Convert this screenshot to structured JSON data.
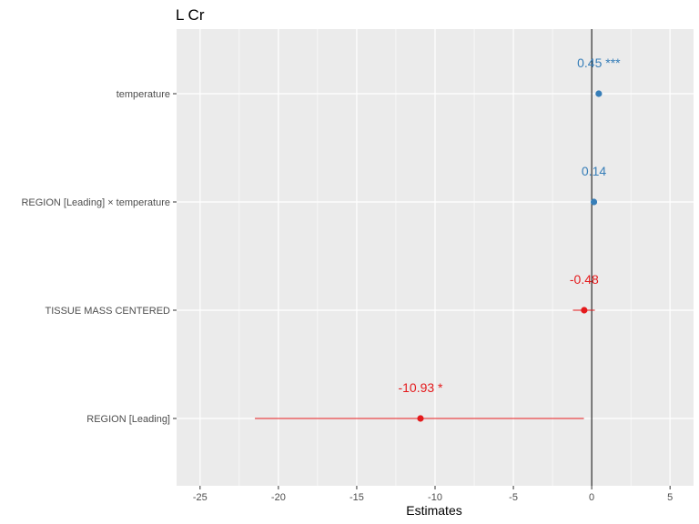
{
  "chart_data": {
    "type": "forest",
    "title": "L Cr",
    "xlabel": "Estimates",
    "ylabel": "",
    "xlim": [
      -26.5,
      6.5
    ],
    "xticks": [
      -25,
      -20,
      -15,
      -10,
      -5,
      0,
      5
    ],
    "zero_line": 0,
    "grid": true,
    "legend": "none",
    "colors": {
      "positive": "#377eb8",
      "negative": "#e41a1c",
      "panel": "#ebebeb",
      "gridline": "#ffffff"
    },
    "terms": [
      {
        "label": "temperature",
        "estimate": 0.45,
        "ci_low": 0.3,
        "ci_high": 0.6,
        "stars": "***",
        "display": "0.45 ***"
      },
      {
        "label": "REGION [Leading] × temperature",
        "estimate": 0.14,
        "ci_low": -0.05,
        "ci_high": 0.33,
        "stars": "",
        "display": "0.14"
      },
      {
        "label": "TISSUE MASS CENTERED",
        "estimate": -0.48,
        "ci_low": -1.2,
        "ci_high": 0.2,
        "stars": "",
        "display": "-0.48"
      },
      {
        "label": "REGION [Leading]",
        "estimate": -10.93,
        "ci_low": -21.5,
        "ci_high": -0.5,
        "stars": "*",
        "display": "-10.93 *"
      }
    ]
  }
}
